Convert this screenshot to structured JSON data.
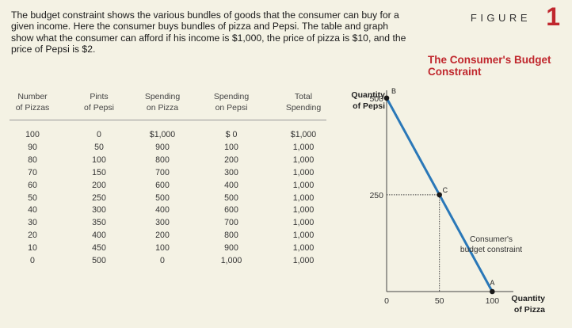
{
  "intro_text": "The budget constraint shows the various bundles of goods that the consumer can buy for a given income. Here the consumer buys bundles of pizza and Pepsi. The table and graph show what the consumer can afford if his income is $1,000, the price of pizza is $10, and the price of Pepsi is $2.",
  "figure": {
    "label": "FIGURE",
    "number": "1",
    "title": "The Consumer's Budget Constraint"
  },
  "table": {
    "headers": [
      [
        "Number",
        "of Pizzas"
      ],
      [
        "Pints",
        "of Pepsi"
      ],
      [
        "Spending",
        "on Pizza"
      ],
      [
        "Spending",
        "on Pepsi"
      ],
      [
        "Total",
        "Spending"
      ]
    ],
    "rows": [
      [
        "100",
        "0",
        "$1,000",
        "$ 0",
        "$1,000"
      ],
      [
        "90",
        "50",
        "900",
        "100",
        "1,000"
      ],
      [
        "80",
        "100",
        "800",
        "200",
        "1,000"
      ],
      [
        "70",
        "150",
        "700",
        "300",
        "1,000"
      ],
      [
        "60",
        "200",
        "600",
        "400",
        "1,000"
      ],
      [
        "50",
        "250",
        "500",
        "500",
        "1,000"
      ],
      [
        "40",
        "300",
        "400",
        "600",
        "1,000"
      ],
      [
        "30",
        "350",
        "300",
        "700",
        "1,000"
      ],
      [
        "20",
        "400",
        "200",
        "800",
        "1,000"
      ],
      [
        "10",
        "450",
        "100",
        "900",
        "1,000"
      ],
      [
        "0",
        "500",
        "0",
        "1,000",
        "1,000"
      ]
    ]
  },
  "chart_data": {
    "type": "line",
    "xlabel": "Quantity of Pizza",
    "ylabel": "Quantity of Pepsi",
    "xlim": [
      0,
      120
    ],
    "ylim": [
      0,
      520
    ],
    "x_ticks": [
      "0",
      "50",
      "100"
    ],
    "x_tick_values": [
      0,
      50,
      100
    ],
    "y_ticks": [
      "250",
      "500"
    ],
    "y_tick_values": [
      250,
      500
    ],
    "series": [
      {
        "values": [
          [
            0,
            500
          ],
          [
            50,
            250
          ],
          [
            100,
            0
          ]
        ]
      }
    ],
    "points": [
      {
        "label": "B",
        "x": 0,
        "y": 500
      },
      {
        "label": "C",
        "x": 50,
        "y": 250
      },
      {
        "label": "A",
        "x": 100,
        "y": 0
      }
    ],
    "line_annotation": "Consumer's budget constraint",
    "colors": {
      "line": "#2a78b8",
      "point": "#1a1a1a"
    }
  }
}
